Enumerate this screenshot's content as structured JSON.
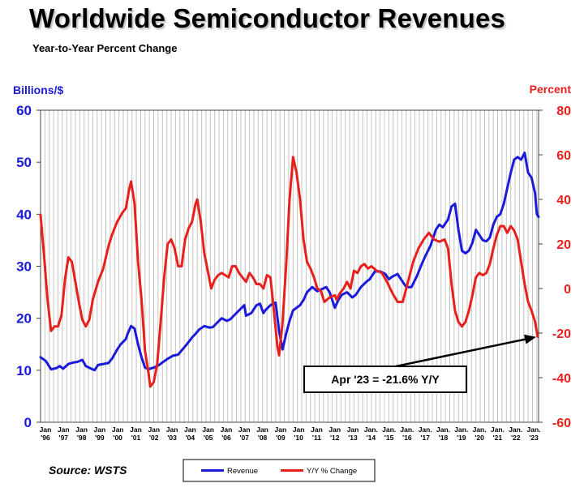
{
  "title": "Worldwide Semiconductor Revenues",
  "subtitle": "Year-to-Year Percent Change",
  "source": "Source: WSTS",
  "chart_data": {
    "type": "line",
    "left_axis": {
      "title": "Billions/$",
      "ylim": [
        0,
        60
      ],
      "ticks": [
        0,
        10,
        20,
        30,
        40,
        50,
        60
      ],
      "color": "#1a1adb"
    },
    "right_axis": {
      "title": "Percent",
      "ylim": [
        -60,
        80
      ],
      "ticks": [
        -60,
        -40,
        -20,
        0,
        20,
        40,
        60,
        80
      ],
      "color": "#e8201c"
    },
    "x_ticks": [
      {
        "l1": "Jan",
        "l2": "'96"
      },
      {
        "l1": "Jan",
        "l2": "'97"
      },
      {
        "l1": "Jan",
        "l2": "'98"
      },
      {
        "l1": "Jan",
        "l2": "'99"
      },
      {
        "l1": "Jan",
        "l2": "'00"
      },
      {
        "l1": "Jan",
        "l2": "'01"
      },
      {
        "l1": "Jan",
        "l2": "'02"
      },
      {
        "l1": "Jan",
        "l2": "'03"
      },
      {
        "l1": "Jan",
        "l2": "'04"
      },
      {
        "l1": "Jan",
        "l2": "'05"
      },
      {
        "l1": "Jan",
        "l2": "'06"
      },
      {
        "l1": "Jan",
        "l2": "'07"
      },
      {
        "l1": "Jan",
        "l2": "'08"
      },
      {
        "l1": "Jan",
        "l2": "'09"
      },
      {
        "l1": "Jan",
        "l2": "'10"
      },
      {
        "l1": "Jan",
        "l2": "'11"
      },
      {
        "l1": "Jan",
        "l2": "'12"
      },
      {
        "l1": "Jan",
        "l2": "'13"
      },
      {
        "l1": "Jan.",
        "l2": "'14"
      },
      {
        "l1": "Jan.",
        "l2": "'15"
      },
      {
        "l1": "Jan.",
        "l2": "'16"
      },
      {
        "l1": "Jan.",
        "l2": "'17"
      },
      {
        "l1": "Jan.",
        "l2": "'18"
      },
      {
        "l1": "Jan.",
        "l2": "'19"
      },
      {
        "l1": "Jan.",
        "l2": "'20"
      },
      {
        "l1": "Jan.",
        "l2": "'21"
      },
      {
        "l1": "Jan.",
        "l2": "'22"
      },
      {
        "l1": "Jan.",
        "l2": "'23"
      }
    ],
    "grid": "vertical",
    "legend": {
      "placement": "bottom"
    },
    "series": [
      {
        "name": "Revenue",
        "axis": "left",
        "color": "#1a1adb",
        "points": [
          [
            1996.0,
            12.5
          ],
          [
            1996.3,
            11.8
          ],
          [
            1996.6,
            10.2
          ],
          [
            1996.9,
            10.4
          ],
          [
            1997.1,
            10.8
          ],
          [
            1997.3,
            10.3
          ],
          [
            1997.6,
            11.2
          ],
          [
            1997.9,
            11.5
          ],
          [
            1998.1,
            11.6
          ],
          [
            1998.4,
            12.0
          ],
          [
            1998.6,
            10.8
          ],
          [
            1998.9,
            10.3
          ],
          [
            1999.1,
            10.0
          ],
          [
            1999.3,
            11.0
          ],
          [
            1999.6,
            11.2
          ],
          [
            1999.9,
            11.4
          ],
          [
            2000.1,
            12.2
          ],
          [
            2000.4,
            14.0
          ],
          [
            2000.6,
            15.0
          ],
          [
            2000.9,
            16.0
          ],
          [
            2001.0,
            17.0
          ],
          [
            2001.2,
            18.5
          ],
          [
            2001.4,
            18.0
          ],
          [
            2001.6,
            15.0
          ],
          [
            2001.8,
            12.5
          ],
          [
            2002.0,
            10.5
          ],
          [
            2002.2,
            10.2
          ],
          [
            2002.5,
            10.5
          ],
          [
            2002.8,
            11.0
          ],
          [
            2003.0,
            11.5
          ],
          [
            2003.3,
            12.2
          ],
          [
            2003.6,
            12.8
          ],
          [
            2003.9,
            13.0
          ],
          [
            2004.1,
            13.8
          ],
          [
            2004.4,
            15.0
          ],
          [
            2004.7,
            16.3
          ],
          [
            2004.9,
            17.0
          ],
          [
            2005.1,
            17.8
          ],
          [
            2005.4,
            18.5
          ],
          [
            2005.7,
            18.2
          ],
          [
            2005.9,
            18.3
          ],
          [
            2006.1,
            19.0
          ],
          [
            2006.4,
            20.0
          ],
          [
            2006.7,
            19.5
          ],
          [
            2006.9,
            19.8
          ],
          [
            2007.1,
            20.5
          ],
          [
            2007.4,
            21.5
          ],
          [
            2007.7,
            22.5
          ],
          [
            2007.8,
            20.5
          ],
          [
            2008.1,
            21.0
          ],
          [
            2008.4,
            22.5
          ],
          [
            2008.6,
            22.8
          ],
          [
            2008.8,
            21.0
          ],
          [
            2008.9,
            21.5
          ],
          [
            2009.2,
            22.5
          ],
          [
            2009.5,
            23.0
          ],
          [
            2009.7,
            17.5
          ],
          [
            2009.9,
            14.0
          ],
          [
            2010.1,
            17.0
          ],
          [
            2010.3,
            19.5
          ],
          [
            2010.5,
            21.5
          ],
          [
            2010.7,
            22.0
          ],
          [
            2010.9,
            22.5
          ],
          [
            2011.1,
            23.5
          ],
          [
            2011.3,
            25.0
          ],
          [
            2011.6,
            26.0
          ],
          [
            2011.9,
            25.2
          ],
          [
            2012.1,
            25.5
          ],
          [
            2012.4,
            26.0
          ],
          [
            2012.6,
            25.0
          ],
          [
            2012.9,
            22.0
          ],
          [
            2013.1,
            23.5
          ],
          [
            2013.3,
            24.5
          ],
          [
            2013.6,
            25.0
          ],
          [
            2013.9,
            24.0
          ],
          [
            2014.1,
            24.5
          ],
          [
            2014.4,
            26.0
          ],
          [
            2014.7,
            27.0
          ],
          [
            2014.9,
            27.5
          ],
          [
            2015.2,
            29.0
          ],
          [
            2015.5,
            29.0
          ],
          [
            2015.8,
            28.5
          ],
          [
            2016.0,
            27.5
          ],
          [
            2016.2,
            28.0
          ],
          [
            2016.5,
            28.5
          ],
          [
            2016.8,
            27.0
          ],
          [
            2017.0,
            26.0
          ],
          [
            2017.3,
            26.0
          ],
          [
            2017.6,
            28.0
          ],
          [
            2017.9,
            30.5
          ],
          [
            2018.1,
            32.0
          ],
          [
            2018.4,
            34.0
          ],
          [
            2018.7,
            37.0
          ],
          [
            2018.9,
            38.0
          ],
          [
            2019.1,
            37.5
          ],
          [
            2019.4,
            39.0
          ],
          [
            2019.6,
            41.5
          ],
          [
            2019.8,
            42.0
          ],
          [
            2020.0,
            37.0
          ],
          [
            2020.2,
            33.0
          ],
          [
            2020.4,
            32.5
          ],
          [
            2020.6,
            33.0
          ],
          [
            2020.8,
            34.5
          ],
          [
            2021.0,
            37.0
          ],
          [
            2021.2,
            36.0
          ],
          [
            2021.4,
            35.0
          ],
          [
            2021.6,
            34.8
          ],
          [
            2021.8,
            35.5
          ],
          [
            2022.0,
            38.0
          ],
          [
            2022.2,
            39.5
          ],
          [
            2022.4,
            40.0
          ],
          [
            2022.6,
            42.0
          ],
          [
            2022.8,
            45.0
          ],
          [
            2023.0,
            48.0
          ],
          [
            2023.2,
            50.5
          ],
          [
            2023.4,
            51.0
          ],
          [
            2023.6,
            50.5
          ],
          [
            2023.8,
            51.8
          ],
          [
            2024.0,
            48.0
          ],
          [
            2024.2,
            47.0
          ],
          [
            2024.4,
            44.0
          ],
          [
            2024.5,
            40.0
          ],
          [
            2024.6,
            39.5
          ]
        ]
      },
      {
        "name": "Y/Y % Change",
        "axis": "right",
        "color": "#e8201c",
        "points": [
          [
            1996.0,
            33
          ],
          [
            1996.2,
            15
          ],
          [
            1996.4,
            -5
          ],
          [
            1996.6,
            -19
          ],
          [
            1996.8,
            -17
          ],
          [
            1997.0,
            -17
          ],
          [
            1997.2,
            -12
          ],
          [
            1997.4,
            4
          ],
          [
            1997.6,
            14
          ],
          [
            1997.8,
            12
          ],
          [
            1998.0,
            3
          ],
          [
            1998.2,
            -6
          ],
          [
            1998.4,
            -14
          ],
          [
            1998.6,
            -17
          ],
          [
            1998.8,
            -14
          ],
          [
            1999.0,
            -5
          ],
          [
            1999.3,
            3
          ],
          [
            1999.6,
            9
          ],
          [
            1999.9,
            19
          ],
          [
            2000.1,
            24
          ],
          [
            2000.4,
            30
          ],
          [
            2000.7,
            34
          ],
          [
            2000.9,
            36
          ],
          [
            2001.1,
            45
          ],
          [
            2001.2,
            48
          ],
          [
            2001.4,
            38
          ],
          [
            2001.6,
            12
          ],
          [
            2001.8,
            -5
          ],
          [
            2002.0,
            -28
          ],
          [
            2002.2,
            -38
          ],
          [
            2002.3,
            -44
          ],
          [
            2002.5,
            -42
          ],
          [
            2002.7,
            -34
          ],
          [
            2002.9,
            -15
          ],
          [
            2003.1,
            5
          ],
          [
            2003.3,
            20
          ],
          [
            2003.5,
            22
          ],
          [
            2003.7,
            18
          ],
          [
            2003.9,
            10
          ],
          [
            2004.1,
            10
          ],
          [
            2004.3,
            22
          ],
          [
            2004.5,
            27
          ],
          [
            2004.7,
            30
          ],
          [
            2004.9,
            38
          ],
          [
            2005.0,
            40
          ],
          [
            2005.2,
            30
          ],
          [
            2005.4,
            16
          ],
          [
            2005.6,
            8
          ],
          [
            2005.8,
            0
          ],
          [
            2006.0,
            4
          ],
          [
            2006.2,
            6
          ],
          [
            2006.4,
            7
          ],
          [
            2006.6,
            6
          ],
          [
            2006.8,
            5
          ],
          [
            2007.0,
            10
          ],
          [
            2007.2,
            10
          ],
          [
            2007.4,
            7
          ],
          [
            2007.6,
            5
          ],
          [
            2007.8,
            3
          ],
          [
            2008.0,
            7
          ],
          [
            2008.2,
            5
          ],
          [
            2008.4,
            2
          ],
          [
            2008.6,
            2
          ],
          [
            2008.8,
            0
          ],
          [
            2009.0,
            6
          ],
          [
            2009.2,
            5
          ],
          [
            2009.4,
            -10
          ],
          [
            2009.6,
            -26
          ],
          [
            2009.7,
            -30
          ],
          [
            2009.9,
            -15
          ],
          [
            2010.1,
            10
          ],
          [
            2010.3,
            40
          ],
          [
            2010.5,
            59
          ],
          [
            2010.7,
            52
          ],
          [
            2010.9,
            40
          ],
          [
            2011.1,
            22
          ],
          [
            2011.3,
            12
          ],
          [
            2011.5,
            9
          ],
          [
            2011.7,
            5
          ],
          [
            2011.9,
            0
          ],
          [
            2012.1,
            -1
          ],
          [
            2012.3,
            -6
          ],
          [
            2012.6,
            -4
          ],
          [
            2012.9,
            -3
          ],
          [
            2013.0,
            -5
          ],
          [
            2013.2,
            -2
          ],
          [
            2013.4,
            0
          ],
          [
            2013.6,
            3
          ],
          [
            2013.8,
            0
          ],
          [
            2014.0,
            8
          ],
          [
            2014.2,
            7
          ],
          [
            2014.4,
            10
          ],
          [
            2014.6,
            11
          ],
          [
            2014.8,
            9
          ],
          [
            2015.0,
            10
          ],
          [
            2015.3,
            8
          ],
          [
            2015.6,
            7
          ],
          [
            2015.9,
            3
          ],
          [
            2016.2,
            -2
          ],
          [
            2016.5,
            -6
          ],
          [
            2016.8,
            -6
          ],
          [
            2017.1,
            3
          ],
          [
            2017.4,
            12
          ],
          [
            2017.7,
            18
          ],
          [
            2018.0,
            22
          ],
          [
            2018.3,
            25
          ],
          [
            2018.6,
            22
          ],
          [
            2018.9,
            21
          ],
          [
            2019.2,
            22
          ],
          [
            2019.4,
            18
          ],
          [
            2019.6,
            2
          ],
          [
            2019.8,
            -10
          ],
          [
            2020.0,
            -15
          ],
          [
            2020.2,
            -17
          ],
          [
            2020.4,
            -15
          ],
          [
            2020.6,
            -10
          ],
          [
            2020.8,
            -3
          ],
          [
            2021.0,
            5
          ],
          [
            2021.2,
            7
          ],
          [
            2021.4,
            6
          ],
          [
            2021.6,
            7
          ],
          [
            2021.8,
            11
          ],
          [
            2022.0,
            18
          ],
          [
            2022.2,
            24
          ],
          [
            2022.4,
            28
          ],
          [
            2022.6,
            28
          ],
          [
            2022.8,
            25
          ],
          [
            2023.0,
            28
          ],
          [
            2023.2,
            26
          ],
          [
            2023.4,
            22
          ],
          [
            2023.6,
            12
          ],
          [
            2023.8,
            2
          ],
          [
            2024.0,
            -6
          ],
          [
            2024.2,
            -10
          ],
          [
            2024.4,
            -15
          ],
          [
            2024.55,
            -21.6
          ]
        ]
      }
    ],
    "annotation": {
      "text": "Apr '23 = -21.6% Y/Y",
      "x": 2024.55,
      "y": -21.6,
      "axis": "right"
    }
  }
}
